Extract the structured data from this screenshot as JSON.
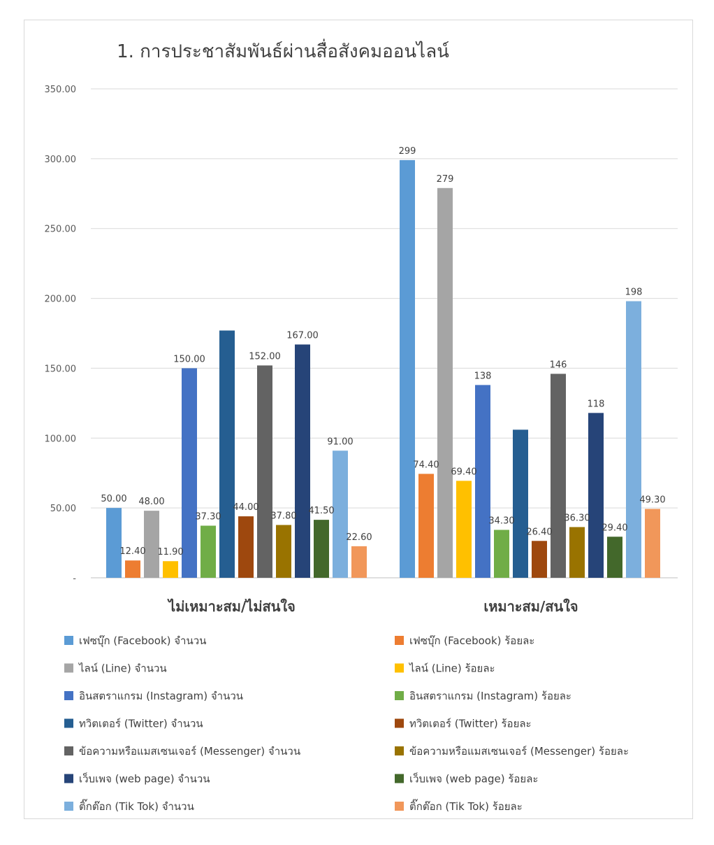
{
  "chart_data": {
    "type": "bar",
    "title": "1. การประชาสัมพันธ์ผ่านสื่อสังคมออนไลน์",
    "xlabel": "",
    "ylabel": "",
    "ylim": [
      0,
      350
    ],
    "y_ticks": [
      0,
      50,
      100,
      150,
      200,
      250,
      300,
      350
    ],
    "y_tick_labels": [
      "-",
      "50.00",
      "100.00",
      "150.00",
      "200.00",
      "250.00",
      "300.00",
      "350.00"
    ],
    "grid": true,
    "legend_position": "bottom",
    "categories": [
      "ไม่เหมาะสม/ไม่สนใจ",
      "เหมาะสม/สนใจ"
    ],
    "series": [
      {
        "name": "เฟซบุ๊ก (Facebook) จำนวน",
        "color": "#5B9BD5",
        "values": [
          50,
          299
        ],
        "labels": [
          "50.00",
          "299"
        ]
      },
      {
        "name": "เฟซบุ๊ก (Facebook) ร้อยละ",
        "color": "#ED7D31",
        "values": [
          12.4,
          74.4
        ],
        "labels": [
          "12.40",
          "74.40"
        ]
      },
      {
        "name": "ไลน์ (Line) จำนวน",
        "color": "#A5A5A5",
        "values": [
          48,
          279
        ],
        "labels": [
          "48.00",
          "279"
        ]
      },
      {
        "name": "ไลน์ (Line) ร้อยละ",
        "color": "#FFC000",
        "values": [
          11.9,
          69.4
        ],
        "labels": [
          "11.90",
          "69.40"
        ]
      },
      {
        "name": "อินสตราแกรม (Instagram) จำนวน",
        "color": "#4472C4",
        "values": [
          150,
          138
        ],
        "labels": [
          "150.00",
          "138"
        ]
      },
      {
        "name": "อินสตราแกรม (Instagram) ร้อยละ",
        "color": "#70AD47",
        "values": [
          37.3,
          34.3
        ],
        "labels": [
          "37.30",
          "34.30"
        ]
      },
      {
        "name": "ทวิตเตอร์ (Twitter) จำนวน",
        "color": "#255E91",
        "values": [
          177,
          106
        ],
        "labels": [
          "",
          ""
        ]
      },
      {
        "name": "ทวิตเตอร์ (Twitter) ร้อยละ",
        "color": "#9E480E",
        "values": [
          44,
          26.4
        ],
        "labels": [
          "44.00",
          "26.40"
        ]
      },
      {
        "name": "ข้อความหรือแมสเซนเจอร์ (Messenger) จำนวน",
        "color": "#636363",
        "values": [
          152,
          146
        ],
        "labels": [
          "152.00",
          "146"
        ]
      },
      {
        "name": "ข้อความหรือแมสเซนเจอร์ (Messenger) ร้อยละ",
        "color": "#997300",
        "values": [
          37.8,
          36.3
        ],
        "labels": [
          "37.80",
          "36.30"
        ]
      },
      {
        "name": "เว็บเพจ (web page)  จำนวน",
        "color": "#264478",
        "values": [
          167,
          118
        ],
        "labels": [
          "167.00",
          "118"
        ]
      },
      {
        "name": "เว็บเพจ (web page)  ร้อยละ",
        "color": "#43682B",
        "values": [
          41.5,
          29.4
        ],
        "labels": [
          "41.50",
          "29.40"
        ]
      },
      {
        "name": "ติ๊กต๊อก (Tik Tok) จำนวน",
        "color": "#7CAFDD",
        "values": [
          91,
          198
        ],
        "labels": [
          "91.00",
          "198"
        ]
      },
      {
        "name": "ติ๊กต๊อก (Tik Tok) ร้อยละ",
        "color": "#F1975A",
        "values": [
          22.6,
          49.3
        ],
        "labels": [
          "22.60",
          "49.30"
        ]
      }
    ]
  }
}
